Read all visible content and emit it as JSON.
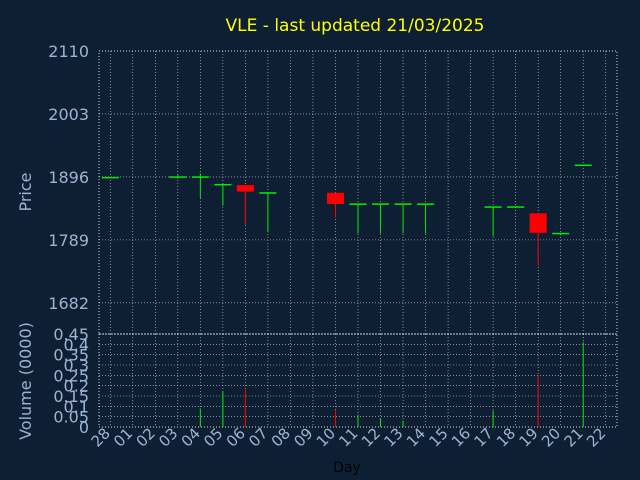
{
  "chart_data": [
    {
      "type": "candlestick",
      "title": "VLE - last updated 21/03/2025",
      "ylabel": "Price",
      "ylim": [
        1629,
        2110
      ],
      "y_ticks": [
        "2110",
        "2003",
        "1896",
        "1789",
        "1682"
      ],
      "colors": {
        "up": "#00ee00",
        "down": "#ff0000",
        "title": "#ffff00",
        "axis_text": "#9ab4d2",
        "background": "#0f1f33",
        "grid": "#ffffff"
      },
      "candles": [
        {
          "day": "28",
          "open": 1896,
          "high": 1896,
          "low": 1896,
          "close": 1896
        },
        {
          "day": "03",
          "open": 1896,
          "high": 1899,
          "low": 1893,
          "close": 1897
        },
        {
          "day": "04",
          "open": 1896,
          "high": 1902,
          "low": 1860,
          "close": 1897
        },
        {
          "day": "05",
          "open": 1884,
          "high": 1885,
          "low": 1847,
          "close": 1884
        },
        {
          "day": "06",
          "open": 1882,
          "high": 1882,
          "low": 1815,
          "close": 1871
        },
        {
          "day": "07",
          "open": 1870,
          "high": 1870,
          "low": 1802,
          "close": 1870
        },
        {
          "day": "10",
          "open": 1869,
          "high": 1869,
          "low": 1827,
          "close": 1850
        },
        {
          "day": "11",
          "open": 1850,
          "high": 1850,
          "low": 1800,
          "close": 1851
        },
        {
          "day": "12",
          "open": 1850,
          "high": 1850,
          "low": 1800,
          "close": 1851
        },
        {
          "day": "13",
          "open": 1850,
          "high": 1850,
          "low": 1800,
          "close": 1851
        },
        {
          "day": "14",
          "open": 1850,
          "high": 1850,
          "low": 1800,
          "close": 1851
        },
        {
          "day": "17",
          "open": 1845,
          "high": 1845,
          "low": 1795,
          "close": 1846
        },
        {
          "day": "18",
          "open": 1845,
          "high": 1845,
          "low": 1845,
          "close": 1846
        },
        {
          "day": "19",
          "open": 1834,
          "high": 1834,
          "low": 1745,
          "close": 1801
        },
        {
          "day": "20",
          "open": 1800,
          "high": 1801,
          "low": 1799,
          "close": 1801
        },
        {
          "day": "21",
          "open": 1916,
          "high": 1917,
          "low": 1915,
          "close": 1917
        }
      ]
    },
    {
      "type": "bar",
      "ylabel": "Volume (0000)",
      "xlabel": "Day",
      "ylim": [
        0,
        0.45
      ],
      "y_ticks": [
        "0.45",
        "0.4",
        "0.35",
        "0.3",
        "0.25",
        "0.2",
        "0.15",
        "0.1",
        "0.05",
        "0"
      ],
      "categories": [
        "28",
        "01",
        "02",
        "03",
        "04",
        "05",
        "06",
        "07",
        "08",
        "09",
        "10",
        "11",
        "12",
        "13",
        "14",
        "15",
        "16",
        "17",
        "18",
        "19",
        "20",
        "21",
        "22"
      ],
      "bars": [
        {
          "day": "04",
          "value": 0.09,
          "color": "#00ee00"
        },
        {
          "day": "05",
          "value": 0.17,
          "color": "#00ee00"
        },
        {
          "day": "06",
          "value": 0.18,
          "color": "#ff0000"
        },
        {
          "day": "10",
          "value": 0.08,
          "color": "#ff0000"
        },
        {
          "day": "11",
          "value": 0.06,
          "color": "#00ee00"
        },
        {
          "day": "12",
          "value": 0.04,
          "color": "#00ee00"
        },
        {
          "day": "13",
          "value": 0.03,
          "color": "#00ee00"
        },
        {
          "day": "17",
          "value": 0.08,
          "color": "#00ee00"
        },
        {
          "day": "19",
          "value": 0.25,
          "color": "#ff0000"
        },
        {
          "day": "21",
          "value": 0.41,
          "color": "#00ee00"
        }
      ]
    }
  ]
}
